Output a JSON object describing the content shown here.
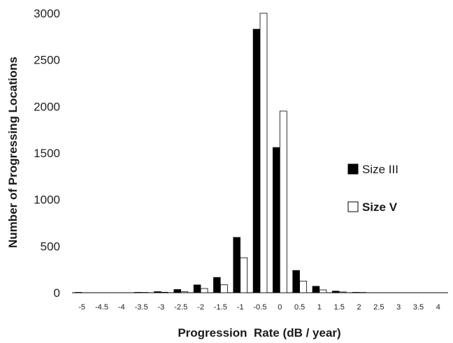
{
  "chart_data": {
    "type": "bar",
    "xlabel": "Progression  Rate (dB / year)",
    "ylabel": "Number of Progressing Locations",
    "ylim": [
      0,
      3000
    ],
    "yticks": [
      "0",
      "500",
      "1000",
      "1500",
      "2000",
      "2500",
      "3000"
    ],
    "categories": [
      "-5",
      "-4.5",
      "-4",
      "-3.5",
      "-3",
      "-2.5",
      "-2",
      "-1.5",
      "-1",
      "-0.5",
      "0",
      "0.5",
      "1",
      "1.5",
      "2",
      "2.5",
      "3",
      "3.5",
      "4"
    ],
    "series": [
      {
        "name": "Size III",
        "color": "#000000",
        "fill": "solid",
        "values": [
          5,
          0,
          0,
          5,
          12,
          35,
          85,
          165,
          595,
          2830,
          1560,
          240,
          70,
          18,
          5,
          0,
          0,
          0,
          0
        ]
      },
      {
        "name": "Size V",
        "color": "#ffffff",
        "fill": "outline",
        "values": [
          0,
          0,
          0,
          3,
          5,
          10,
          45,
          85,
          375,
          3000,
          1950,
          125,
          30,
          8,
          3,
          0,
          0,
          0,
          0
        ]
      }
    ],
    "legend": {
      "placement": "right",
      "entries": [
        "Size III",
        "Size V"
      ]
    },
    "grid": false
  }
}
